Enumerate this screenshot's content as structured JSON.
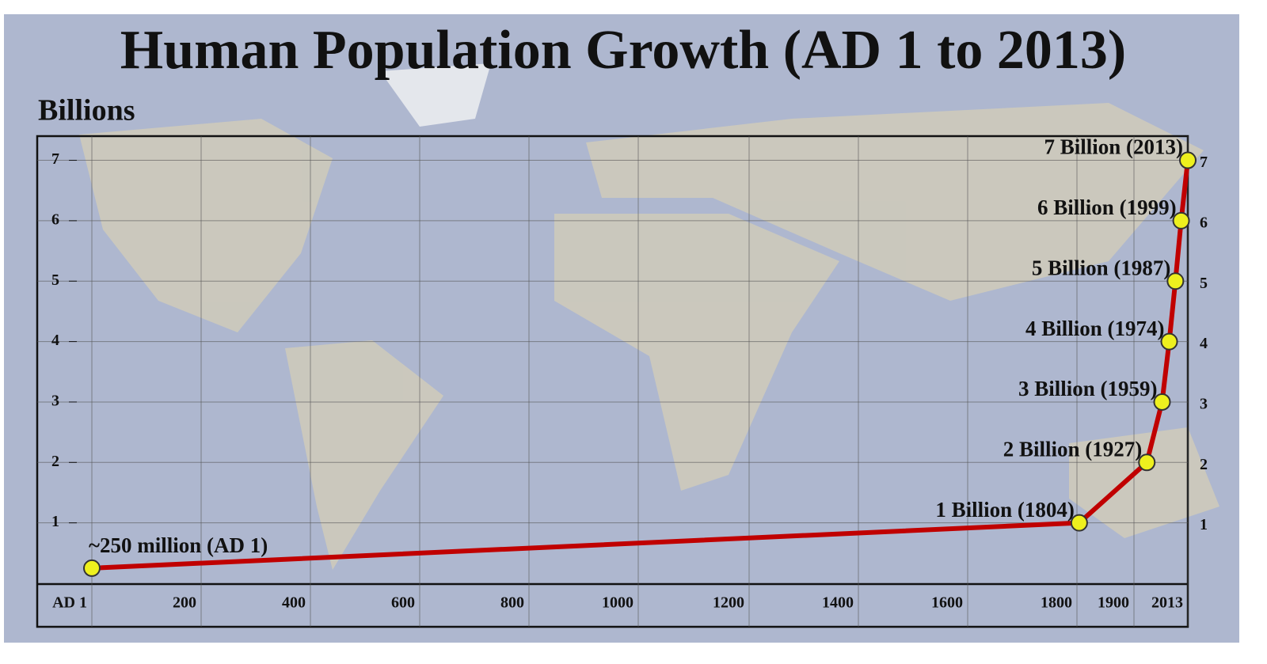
{
  "chart_data": {
    "type": "line",
    "title": "Human Population Growth (AD 1 to 2013)",
    "y_label": "Billions",
    "xticks": [
      {
        "value": 1,
        "label": "AD 1"
      },
      200,
      400,
      600,
      800,
      1000,
      1200,
      1400,
      1600,
      1800,
      1900,
      2013
    ],
    "ylim": [
      0,
      7.4
    ],
    "yticks": [
      1,
      2,
      3,
      4,
      5,
      6,
      7
    ],
    "grid": true,
    "series": [
      {
        "color": "#c00000",
        "marker_color": "#eef01e",
        "x": [
          1,
          1804,
          1927,
          1959,
          1974,
          1987,
          1999,
          2013
        ],
        "values": [
          0.25,
          1,
          2,
          3,
          4,
          5,
          6,
          7
        ],
        "value_labels": [
          "~250 million (AD 1)",
          "1 Billion (1804)",
          "2 Billion (1927)",
          "3 Billion (1959)",
          "4 Billion (1974)",
          "5 Billion (1987)",
          "6 Billion (1999)",
          "7 Billion (2013)"
        ]
      }
    ]
  }
}
